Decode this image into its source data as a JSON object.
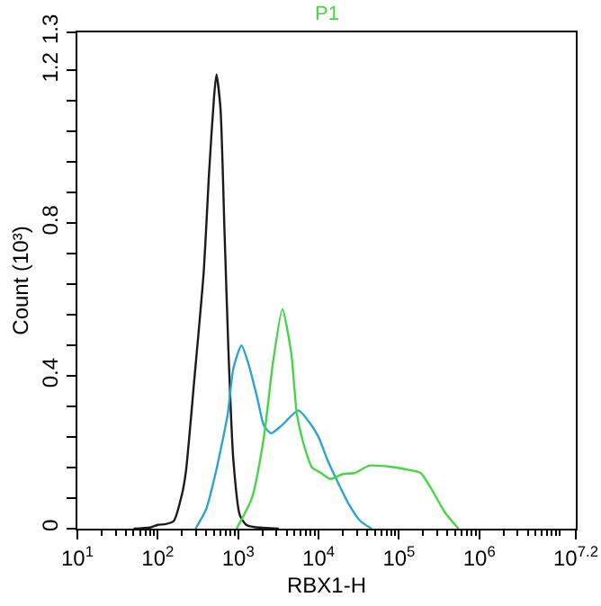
{
  "chart_data": {
    "type": "line",
    "xlabel": "RBX1-H",
    "ylabel": "Count (10³)",
    "log": "x",
    "grid": false,
    "legend": "top",
    "xlim": [
      10,
      15848932
    ],
    "ylim": [
      0,
      1.3
    ],
    "xticks": [
      {
        "value": 10,
        "label": "10$^{1}$"
      },
      {
        "value": 20,
        "label": null
      },
      {
        "value": 30,
        "label": null
      },
      {
        "value": 40,
        "label": null
      },
      {
        "value": 50,
        "label": null
      },
      {
        "value": 60,
        "label": null
      },
      {
        "value": 70,
        "label": null
      },
      {
        "value": 80,
        "label": null
      },
      {
        "value": 90,
        "label": null
      },
      {
        "value": 100,
        "label": "10$^{2}$"
      },
      {
        "value": 200,
        "label": null
      },
      {
        "value": 300,
        "label": null
      },
      {
        "value": 400,
        "label": null
      },
      {
        "value": 500,
        "label": null
      },
      {
        "value": 600,
        "label": null
      },
      {
        "value": 700,
        "label": null
      },
      {
        "value": 800,
        "label": null
      },
      {
        "value": 900,
        "label": null
      },
      {
        "value": 1000,
        "label": "10$^{3}$"
      },
      {
        "value": 2000,
        "label": null
      },
      {
        "value": 3000,
        "label": null
      },
      {
        "value": 4000,
        "label": null
      },
      {
        "value": 5000,
        "label": null
      },
      {
        "value": 6000,
        "label": null
      },
      {
        "value": 7000,
        "label": null
      },
      {
        "value": 8000,
        "label": null
      },
      {
        "value": 9000,
        "label": null
      },
      {
        "value": 10000,
        "label": "10$^{4}$"
      },
      {
        "value": 20000,
        "label": null
      },
      {
        "value": 30000,
        "label": null
      },
      {
        "value": 40000,
        "label": null
      },
      {
        "value": 50000,
        "label": null
      },
      {
        "value": 60000,
        "label": null
      },
      {
        "value": 70000,
        "label": null
      },
      {
        "value": 80000,
        "label": null
      },
      {
        "value": 90000,
        "label": null
      },
      {
        "value": 100000,
        "label": "10$^{5}$"
      },
      {
        "value": 200000,
        "label": null
      },
      {
        "value": 300000,
        "label": null
      },
      {
        "value": 400000,
        "label": null
      },
      {
        "value": 500000,
        "label": null
      },
      {
        "value": 600000,
        "label": null
      },
      {
        "value": 700000,
        "label": null
      },
      {
        "value": 800000,
        "label": null
      },
      {
        "value": 900000,
        "label": null
      },
      {
        "value": 1000000,
        "label": "10$^{6}$"
      },
      {
        "value": 2000000,
        "label": null
      },
      {
        "value": 3000000,
        "label": null
      },
      {
        "value": 4000000,
        "label": null
      },
      {
        "value": 5000000,
        "label": null
      },
      {
        "value": 6000000,
        "label": null
      },
      {
        "value": 7000000,
        "label": null
      },
      {
        "value": 8000000,
        "label": null
      },
      {
        "value": 9000000,
        "label": null
      },
      {
        "value": 10000000,
        "label": null
      },
      {
        "value": 15848932,
        "label": "10$^{7.2}$"
      }
    ],
    "yticks": [
      0,
      {
        "value": 0.08,
        "label": null
      },
      {
        "value": 0.16,
        "label": null
      },
      {
        "value": 0.24,
        "label": null
      },
      {
        "value": 0.32,
        "label": null
      },
      0.4,
      {
        "value": 0.48,
        "label": null
      },
      {
        "value": 0.56,
        "label": null
      },
      {
        "value": 0.64,
        "label": null
      },
      {
        "value": 0.72,
        "label": null
      },
      0.8,
      {
        "value": 0.88,
        "label": null
      },
      {
        "value": 0.96,
        "label": null
      },
      {
        "value": 1.04,
        "label": null
      },
      {
        "value": 1.12,
        "label": null
      },
      1.2,
      1.3
    ],
    "series": [
      {
        "color": "#1a1a1a",
        "x": [
          50,
          80,
          100,
          126,
          158,
          200,
          224,
          282,
          372,
          437,
          501,
          537,
          603,
          676,
          759,
          871,
          1050,
          1260,
          1600,
          3200
        ],
        "values": [
          0,
          0.003,
          0.01,
          0.012,
          0.02,
          0.09,
          0.15,
          0.38,
          0.67,
          0.94,
          1.13,
          1.19,
          1.1,
          0.78,
          0.46,
          0.18,
          0.035,
          0.01,
          0.004,
          0
        ]
      },
      {
        "color": "#2aa5d0",
        "x": [
          295,
          398,
          525,
          741,
          871,
          1100,
          1350,
          1740,
          2090,
          2570,
          3470,
          5620,
          7590,
          10000,
          12900,
          16600,
          23400,
          33100,
          45700
        ],
        "values": [
          0,
          0.05,
          0.146,
          0.3,
          0.42,
          0.48,
          0.43,
          0.34,
          0.27,
          0.25,
          0.27,
          0.31,
          0.28,
          0.24,
          0.18,
          0.13,
          0.067,
          0.02,
          0
        ]
      },
      {
        "name": "P1",
        "color": "#44d644",
        "x": [
          955,
          1480,
          2090,
          2690,
          3550,
          4570,
          5370,
          6460,
          8320,
          10700,
          14100,
          20000,
          28200,
          42700,
          79400,
          132000,
          186000,
          263000,
          372000,
          550000
        ],
        "values": [
          0,
          0.08,
          0.24,
          0.43,
          0.575,
          0.46,
          0.3,
          0.225,
          0.16,
          0.146,
          0.13,
          0.143,
          0.146,
          0.165,
          0.162,
          0.154,
          0.146,
          0.098,
          0.043,
          0
        ]
      }
    ]
  }
}
